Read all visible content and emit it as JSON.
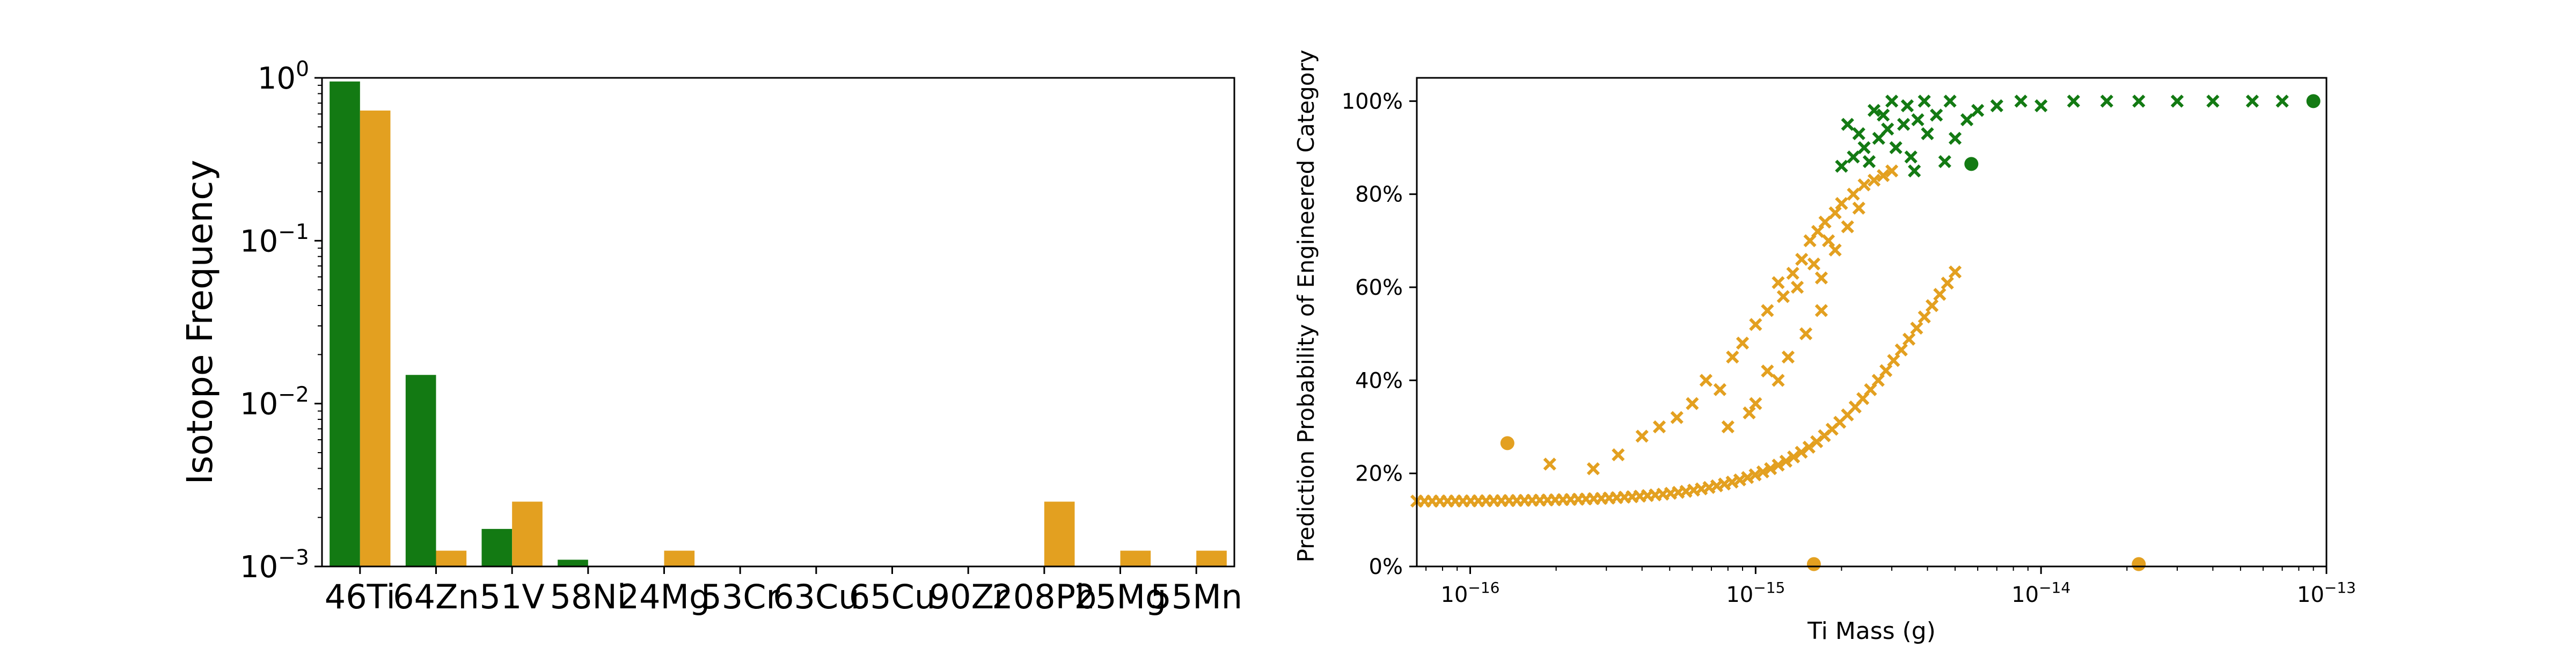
{
  "chart_data": [
    {
      "type": "bar",
      "ylabel": "Isotope Frequency",
      "yscale": "log",
      "ylim": [
        0.001,
        1
      ],
      "y_ticks": [
        {
          "base": "10",
          "exp": "0"
        },
        {
          "base": "10",
          "exp": "−1"
        },
        {
          "base": "10",
          "exp": "−2"
        },
        {
          "base": "10",
          "exp": "−3"
        }
      ],
      "categories": [
        "46Ti",
        "64Zn",
        "51V",
        "58Ni",
        "24Mg",
        "53Cr",
        "63Cu",
        "65Cu",
        "90Zr",
        "208Pb",
        "25Mg",
        "55Mn"
      ],
      "series": [
        {
          "color": "#137a13",
          "values": [
            0.95,
            0.015,
            0.0017,
            0.0011,
            null,
            null,
            null,
            null,
            null,
            null,
            null,
            null
          ]
        },
        {
          "color": "#e3a020",
          "values": [
            0.63,
            0.00125,
            0.0025,
            null,
            0.00125,
            null,
            null,
            null,
            null,
            0.0025,
            0.00125,
            0.00125
          ]
        }
      ]
    },
    {
      "type": "scatter",
      "xlabel": "Ti Mass (g)",
      "ylabel": "Prediction Probability of Engineered Category",
      "xscale": "log",
      "xlim": [
        6.5e-17,
        1e-13
      ],
      "ylim": [
        0,
        1.05
      ],
      "x_ticks": [
        {
          "value": 1e-16,
          "base": "10",
          "exp": "−16"
        },
        {
          "value": 1e-15,
          "base": "10",
          "exp": "−15"
        },
        {
          "value": 1e-14,
          "base": "10",
          "exp": "−14"
        },
        {
          "value": 1e-13,
          "base": "10",
          "exp": "−13"
        }
      ],
      "y_ticks": [
        {
          "value": 0,
          "label": "0%"
        },
        {
          "value": 0.2,
          "label": "20%"
        },
        {
          "value": 0.4,
          "label": "40%"
        },
        {
          "value": 0.6,
          "label": "60%"
        },
        {
          "value": 0.8,
          "label": "80%"
        },
        {
          "value": 1.0,
          "label": "100%"
        }
      ],
      "series": [
        {
          "color": "#137a13",
          "marker": "x",
          "points": [
            [
              2e-15,
              0.86
            ],
            [
              2.2e-15,
              0.88
            ],
            [
              2.4e-15,
              0.9
            ],
            [
              2.5e-15,
              0.87
            ],
            [
              2.7e-15,
              0.92
            ],
            [
              2.9e-15,
              0.94
            ],
            [
              3.1e-15,
              0.9
            ],
            [
              3.3e-15,
              0.95
            ],
            [
              3.5e-15,
              0.88
            ],
            [
              3.7e-15,
              0.96
            ],
            [
              4e-15,
              0.93
            ],
            [
              4.3e-15,
              0.97
            ],
            [
              4.6e-15,
              0.87
            ],
            [
              5e-15,
              0.92
            ],
            [
              5.5e-15,
              0.96
            ],
            [
              6e-15,
              0.98
            ],
            [
              7e-15,
              0.99
            ],
            [
              8.5e-15,
              1.0
            ],
            [
              1e-14,
              0.99
            ],
            [
              1.3e-14,
              1.0
            ],
            [
              1.7e-14,
              1.0
            ],
            [
              2.2e-14,
              1.0
            ],
            [
              3e-14,
              1.0
            ],
            [
              4e-14,
              1.0
            ],
            [
              5.5e-14,
              1.0
            ],
            [
              7e-14,
              1.0
            ],
            [
              2.6e-15,
              0.98
            ],
            [
              3e-15,
              1.0
            ],
            [
              3.4e-15,
              0.99
            ],
            [
              2.1e-15,
              0.95
            ],
            [
              2.8e-15,
              0.97
            ],
            [
              3.9e-15,
              1.0
            ],
            [
              4.8e-15,
              1.0
            ],
            [
              2.3e-15,
              0.93
            ],
            [
              3.6e-15,
              0.85
            ]
          ]
        },
        {
          "color": "#137a13",
          "marker": "o",
          "points": [
            [
              5.7e-15,
              0.865
            ],
            [
              9e-14,
              1.0
            ]
          ]
        },
        {
          "color": "#e3a020",
          "marker": "x",
          "points": [
            [
              1.9e-16,
              0.22
            ],
            [
              2.7e-16,
              0.21
            ],
            [
              3.3e-16,
              0.24
            ],
            [
              4e-16,
              0.28
            ],
            [
              4.6e-16,
              0.3
            ],
            [
              5.3e-16,
              0.32
            ],
            [
              6e-16,
              0.35
            ],
            [
              6.7e-16,
              0.4
            ],
            [
              7.5e-16,
              0.38
            ],
            [
              8.3e-16,
              0.45
            ],
            [
              9e-16,
              0.48
            ],
            [
              1e-15,
              0.52
            ],
            [
              1.1e-15,
              0.55
            ],
            [
              1.2e-15,
              0.61
            ],
            [
              1.25e-15,
              0.58
            ],
            [
              1.35e-15,
              0.63
            ],
            [
              1.45e-15,
              0.66
            ],
            [
              1.55e-15,
              0.7
            ],
            [
              1.65e-15,
              0.72
            ],
            [
              1.75e-15,
              0.74
            ],
            [
              1.9e-15,
              0.76
            ],
            [
              2e-15,
              0.78
            ],
            [
              2.2e-15,
              0.8
            ],
            [
              2.4e-15,
              0.82
            ],
            [
              2.6e-15,
              0.83
            ],
            [
              2.8e-15,
              0.84
            ],
            [
              3e-15,
              0.85
            ],
            [
              1.3e-15,
              0.45
            ],
            [
              1.5e-15,
              0.5
            ],
            [
              1.7e-15,
              0.55
            ],
            [
              1.2e-15,
              0.4
            ],
            [
              1e-15,
              0.35
            ],
            [
              8e-16,
              0.3
            ],
            [
              1.4e-15,
              0.6
            ],
            [
              1.6e-15,
              0.65
            ],
            [
              1.8e-15,
              0.7
            ],
            [
              1.1e-15,
              0.42
            ],
            [
              9.5e-16,
              0.33
            ],
            [
              2.1e-15,
              0.73
            ],
            [
              2.3e-15,
              0.77
            ],
            [
              1.9e-15,
              0.68
            ],
            [
              1.7e-15,
              0.62
            ]
          ]
        },
        {
          "color": "#e3a020",
          "marker": "o",
          "points": [
            [
              1.35e-16,
              0.265
            ],
            [
              1.6e-15,
              0.005
            ],
            [
              2.2e-14,
              0.005
            ]
          ]
        }
      ],
      "trend": {
        "color": "#e3a020",
        "marker": "x",
        "x_range": [
          6.5e-17,
          5e-15
        ],
        "midpoint": 1.9e-15,
        "floor": 0.14,
        "ceiling": 1.0
      }
    }
  ]
}
